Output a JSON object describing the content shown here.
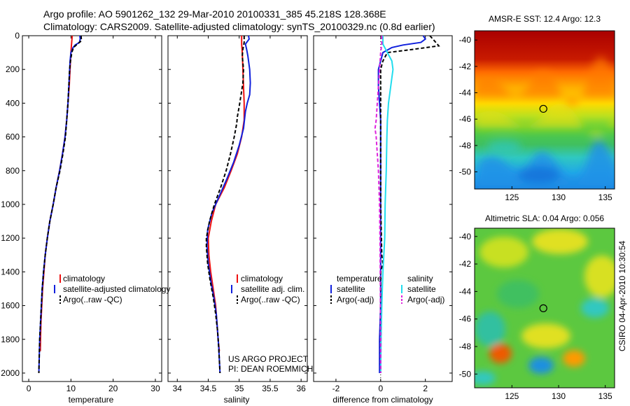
{
  "header": {
    "line1": "Argo profile: AO 5901262_132 29-Mar-2010 20100331_385 45.218S 128.368E",
    "line2": "Climatology: CARS2009. Satellite-adjusted climatology: synTS_20100329.nc (0.8d earlier)"
  },
  "side_label": "CSIRO 04-Apr-2010 10:30:54",
  "project": {
    "line1": "US ARGO PROJECT",
    "line2": "PI: DEAN ROEMMICH"
  },
  "colors": {
    "climatology": "#ee1111",
    "satellite": "#1020dd",
    "argo": "#000000",
    "sal_sat": "#22ddee",
    "sal_argo": "#dd22dd"
  },
  "chart_data": [
    {
      "type": "line",
      "xlabel": "temperature",
      "ylim": [
        2050,
        0
      ],
      "xlim": [
        -1.5,
        31.5
      ],
      "xticks": [
        0,
        10,
        20,
        30
      ],
      "yticks": [
        0,
        200,
        400,
        600,
        800,
        1000,
        1200,
        1400,
        1600,
        1800,
        2000
      ],
      "legend": [
        "climatology",
        "satellite-adjusted climatology",
        "Argo(..raw -QC)"
      ],
      "series": [
        {
          "name": "climatology",
          "color": "#ee1111",
          "dash": "",
          "points": [
            [
              10.3,
              0
            ],
            [
              10.2,
              30
            ],
            [
              10.1,
              60
            ],
            [
              10.0,
              100
            ],
            [
              9.9,
              150
            ],
            [
              9.8,
              200
            ],
            [
              9.6,
              300
            ],
            [
              9.3,
              400
            ],
            [
              9.0,
              500
            ],
            [
              8.6,
              600
            ],
            [
              8.0,
              700
            ],
            [
              7.3,
              800
            ],
            [
              6.5,
              900
            ],
            [
              5.8,
              1000
            ],
            [
              5.0,
              1100
            ],
            [
              4.4,
              1200
            ],
            [
              3.9,
              1300
            ],
            [
              3.6,
              1400
            ],
            [
              3.3,
              1500
            ],
            [
              3.1,
              1600
            ],
            [
              2.9,
              1700
            ],
            [
              2.8,
              1800
            ],
            [
              2.75,
              1870
            ]
          ]
        },
        {
          "name": "satellite-adjusted climatology",
          "color": "#1020dd",
          "dash": "",
          "points": [
            [
              12.1,
              0
            ],
            [
              12.2,
              20
            ],
            [
              12.0,
              40
            ],
            [
              11.0,
              55
            ],
            [
              10.5,
              70
            ],
            [
              10.0,
              100
            ],
            [
              9.8,
              150
            ],
            [
              9.7,
              200
            ],
            [
              9.5,
              300
            ],
            [
              9.3,
              400
            ],
            [
              9.0,
              500
            ],
            [
              8.6,
              600
            ],
            [
              8.0,
              700
            ],
            [
              7.3,
              800
            ],
            [
              6.5,
              900
            ],
            [
              5.8,
              1000
            ],
            [
              5.0,
              1100
            ],
            [
              4.4,
              1200
            ],
            [
              3.9,
              1300
            ],
            [
              3.5,
              1400
            ],
            [
              3.2,
              1500
            ],
            [
              3.0,
              1600
            ],
            [
              2.8,
              1700
            ],
            [
              2.6,
              1800
            ],
            [
              2.5,
              1900
            ],
            [
              2.4,
              2000
            ]
          ]
        },
        {
          "name": "Argo(..raw -QC)",
          "color": "#000000",
          "dash": "5,3",
          "points": [
            [
              12.4,
              0
            ],
            [
              12.5,
              30
            ],
            [
              11.5,
              50
            ],
            [
              10.6,
              70
            ],
            [
              10.2,
              100
            ],
            [
              9.9,
              150
            ],
            [
              9.7,
              200
            ],
            [
              9.5,
              300
            ],
            [
              9.3,
              400
            ],
            [
              9.0,
              500
            ],
            [
              8.7,
              600
            ],
            [
              8.1,
              700
            ],
            [
              7.4,
              800
            ],
            [
              6.5,
              900
            ],
            [
              5.8,
              1000
            ],
            [
              5.0,
              1100
            ],
            [
              4.4,
              1200
            ],
            [
              3.9,
              1300
            ],
            [
              3.5,
              1400
            ],
            [
              3.2,
              1500
            ],
            [
              3.0,
              1600
            ],
            [
              2.8,
              1700
            ],
            [
              2.6,
              1800
            ],
            [
              2.5,
              1900
            ],
            [
              2.4,
              2000
            ]
          ]
        }
      ]
    },
    {
      "type": "line",
      "xlabel": "salinity",
      "ylim": [
        2050,
        0
      ],
      "xlim": [
        33.85,
        36.1
      ],
      "xticks": [
        34,
        34.5,
        35,
        35.5,
        36
      ],
      "legend": [
        "climatology",
        "satellite adj. clim.",
        "Argo(..raw -QC)"
      ],
      "series": [
        {
          "name": "climatology",
          "color": "#ee1111",
          "dash": "",
          "points": [
            [
              35.04,
              0
            ],
            [
              35.04,
              50
            ],
            [
              35.05,
              100
            ],
            [
              35.06,
              200
            ],
            [
              35.07,
              300
            ],
            [
              35.08,
              400
            ],
            [
              35.08,
              500
            ],
            [
              35.04,
              600
            ],
            [
              34.97,
              700
            ],
            [
              34.87,
              800
            ],
            [
              34.76,
              900
            ],
            [
              34.62,
              1000
            ],
            [
              34.55,
              1100
            ],
            [
              34.5,
              1200
            ],
            [
              34.51,
              1300
            ],
            [
              34.54,
              1400
            ],
            [
              34.58,
              1500
            ],
            [
              34.62,
              1600
            ],
            [
              34.64,
              1700
            ],
            [
              34.66,
              1800
            ],
            [
              34.68,
              1870
            ]
          ]
        },
        {
          "name": "satellite adj. clim.",
          "color": "#1020dd",
          "dash": "",
          "points": [
            [
              35.15,
              0
            ],
            [
              35.16,
              20
            ],
            [
              35.1,
              50
            ],
            [
              35.12,
              80
            ],
            [
              35.14,
              120
            ],
            [
              35.17,
              200
            ],
            [
              35.18,
              280
            ],
            [
              35.17,
              350
            ],
            [
              35.13,
              400
            ],
            [
              35.1,
              450
            ],
            [
              35.07,
              550
            ],
            [
              35.0,
              650
            ],
            [
              34.91,
              750
            ],
            [
              34.8,
              850
            ],
            [
              34.68,
              950
            ],
            [
              34.56,
              1050
            ],
            [
              34.49,
              1150
            ],
            [
              34.48,
              1250
            ],
            [
              34.5,
              1350
            ],
            [
              34.54,
              1450
            ],
            [
              34.59,
              1550
            ],
            [
              34.63,
              1650
            ],
            [
              34.65,
              1750
            ],
            [
              34.67,
              1850
            ],
            [
              34.69,
              2000
            ]
          ]
        },
        {
          "name": "Argo(..raw -QC)",
          "color": "#000000",
          "dash": "5,3",
          "points": [
            [
              35.08,
              0
            ],
            [
              35.08,
              40
            ],
            [
              35.06,
              80
            ],
            [
              35.05,
              120
            ],
            [
              35.07,
              200
            ],
            [
              35.06,
              280
            ],
            [
              35.03,
              350
            ],
            [
              35.0,
              420
            ],
            [
              34.97,
              480
            ],
            [
              34.96,
              520
            ],
            [
              34.92,
              600
            ],
            [
              34.86,
              700
            ],
            [
              34.79,
              800
            ],
            [
              34.7,
              900
            ],
            [
              34.6,
              1000
            ],
            [
              34.52,
              1100
            ],
            [
              34.47,
              1200
            ],
            [
              34.47,
              1250
            ],
            [
              34.49,
              1350
            ],
            [
              34.53,
              1450
            ],
            [
              34.58,
              1550
            ],
            [
              34.62,
              1650
            ],
            [
              34.65,
              1750
            ],
            [
              34.67,
              1850
            ],
            [
              34.69,
              2000
            ]
          ]
        }
      ]
    },
    {
      "type": "line",
      "xlabel": "difference from climatology",
      "ylim": [
        2050,
        0
      ],
      "xlim": [
        -3,
        3.2
      ],
      "xticks": [
        -2,
        0,
        2
      ],
      "legend_t": {
        "title": "temperature",
        "items": [
          "satellite",
          "Argo(-adj)"
        ]
      },
      "legend_s": {
        "title": "salinity",
        "items": [
          "satellite",
          "Argo(-adj)"
        ]
      },
      "series": [
        {
          "name": "temperature satellite",
          "color": "#1020dd",
          "dash": "",
          "points": [
            [
              1.9,
              0
            ],
            [
              2.0,
              20
            ],
            [
              1.8,
              40
            ],
            [
              1.0,
              55
            ],
            [
              0.5,
              70
            ],
            [
              0.1,
              100
            ],
            [
              0.0,
              150
            ],
            [
              -0.1,
              200
            ],
            [
              -0.1,
              300
            ],
            [
              0.0,
              500
            ],
            [
              0.0,
              800
            ],
            [
              0.0,
              1000
            ],
            [
              0.0,
              1300
            ],
            [
              0.0,
              1600
            ],
            [
              -0.05,
              1800
            ],
            [
              -0.05,
              2000
            ]
          ]
        },
        {
          "name": "temperature Argo(-adj)",
          "color": "#000000",
          "dash": "5,3",
          "points": [
            [
              2.2,
              0
            ],
            [
              2.4,
              30
            ],
            [
              2.6,
              60
            ],
            [
              1.5,
              80
            ],
            [
              0.3,
              100
            ],
            [
              0.1,
              150
            ],
            [
              0.0,
              200
            ],
            [
              0.0,
              400
            ],
            [
              0.0,
              700
            ],
            [
              0.0,
              1000
            ],
            [
              0.05,
              1300
            ],
            [
              0.1,
              1350
            ],
            [
              0.0,
              1400
            ],
            [
              0.0,
              1700
            ],
            [
              0.0,
              2000
            ]
          ]
        },
        {
          "name": "salinity satellite",
          "color": "#22ddee",
          "dash": "",
          "points": [
            [
              0.1,
              0
            ],
            [
              0.1,
              50
            ],
            [
              0.3,
              100
            ],
            [
              0.5,
              150
            ],
            [
              0.55,
              200
            ],
            [
              0.45,
              300
            ],
            [
              0.35,
              400
            ],
            [
              0.3,
              500
            ],
            [
              0.28,
              600
            ],
            [
              0.25,
              800
            ],
            [
              0.2,
              1000
            ],
            [
              0.18,
              1200
            ],
            [
              0.1,
              1400
            ],
            [
              0.05,
              1600
            ],
            [
              0.02,
              1800
            ],
            [
              0.0,
              2000
            ]
          ]
        },
        {
          "name": "salinity Argo(-adj)",
          "color": "#dd22dd",
          "dash": "5,3",
          "points": [
            [
              0.05,
              0
            ],
            [
              0.05,
              50
            ],
            [
              0.0,
              100
            ],
            [
              -0.05,
              200
            ],
            [
              -0.1,
              300
            ],
            [
              -0.15,
              400
            ],
            [
              -0.2,
              500
            ],
            [
              -0.25,
              550
            ],
            [
              -0.2,
              600
            ],
            [
              -0.15,
              700
            ],
            [
              -0.1,
              800
            ],
            [
              -0.05,
              1000
            ],
            [
              -0.03,
              1200
            ],
            [
              -0.02,
              1400
            ],
            [
              -0.01,
              1600
            ],
            [
              0.0,
              1800
            ],
            [
              0.0,
              2000
            ]
          ]
        }
      ]
    },
    {
      "type": "heatmap",
      "title": "AMSR-E SST: 12.4 Argo: 12.3",
      "x_range": [
        121,
        136
      ],
      "y_range": [
        -51.3,
        -39.3
      ],
      "xticks": [
        125,
        130,
        135
      ],
      "yticks": [
        -40,
        -42,
        -44,
        -46,
        -48,
        -50
      ],
      "marker": [
        128.368,
        -45.218
      ]
    },
    {
      "type": "heatmap",
      "title": "Altimetric SLA: 0.04 Argo: 0.056",
      "x_range": [
        121,
        136
      ],
      "y_range": [
        -51,
        -39.4
      ],
      "xticks": [
        125,
        130,
        135
      ],
      "yticks": [
        -40,
        -42,
        -44,
        -46,
        -48,
        -50
      ],
      "marker": [
        128.368,
        -45.218
      ]
    }
  ]
}
